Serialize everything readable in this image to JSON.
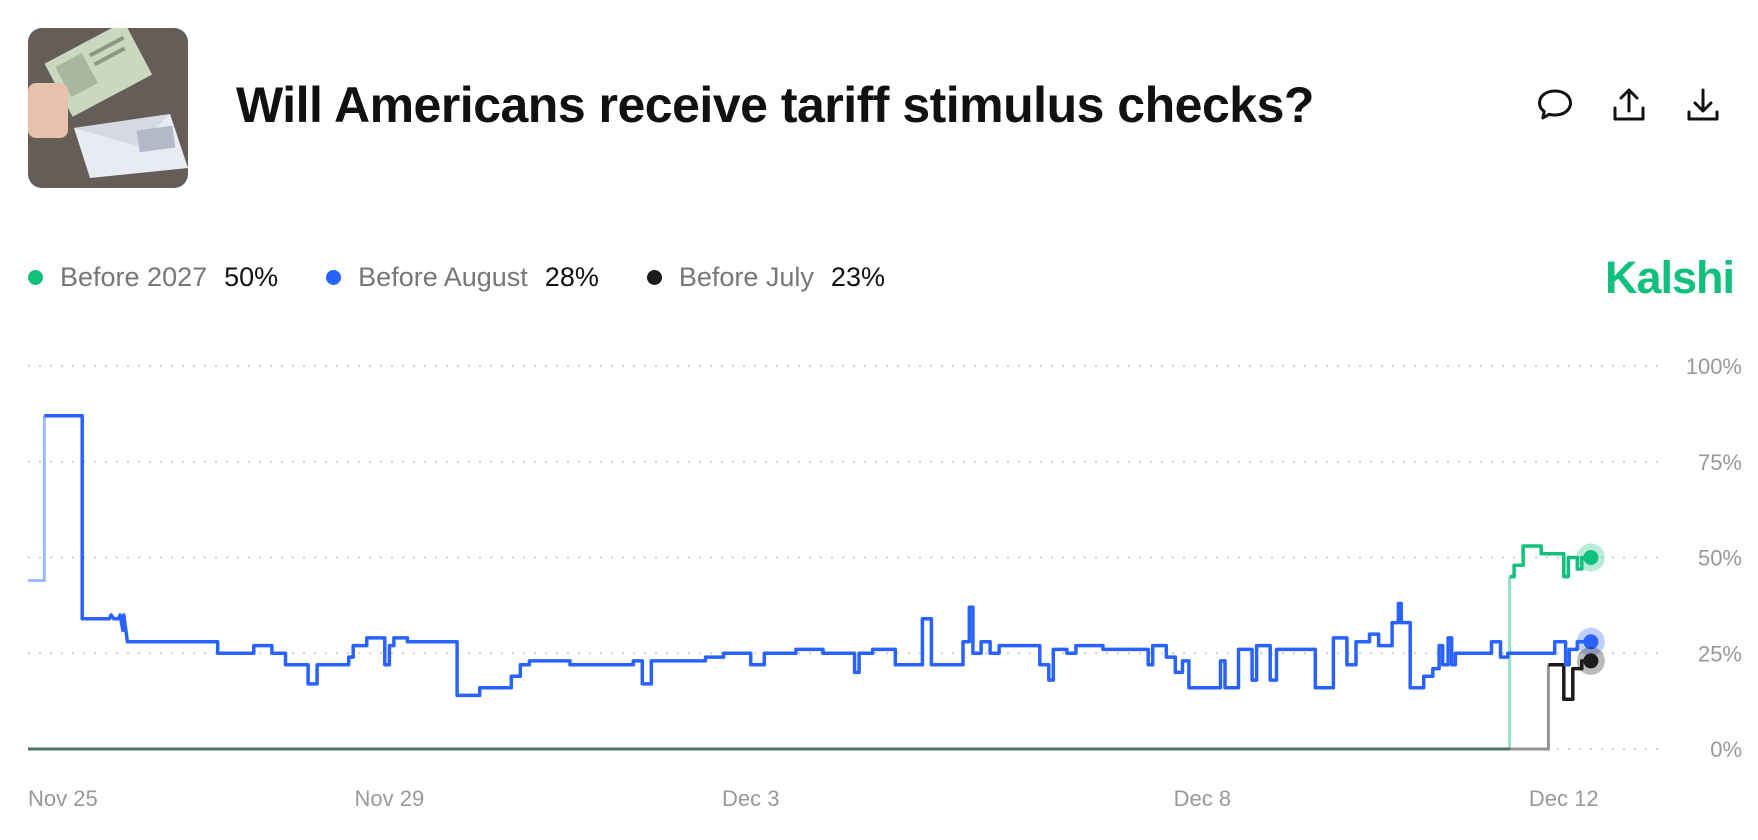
{
  "header": {
    "title": "Will Americans receive tariff stimulus checks?",
    "thumbnail_icon": "stimulus-check-envelope-photo",
    "actions": [
      {
        "name": "comment-icon"
      },
      {
        "name": "share-icon"
      },
      {
        "name": "download-icon"
      }
    ]
  },
  "brand": {
    "label": "Kalshi",
    "color": "#12c07e"
  },
  "legend": [
    {
      "name": "Before 2027",
      "value": "50%",
      "color": "#12c07e"
    },
    {
      "name": "Before August",
      "value": "28%",
      "color": "#2962ff"
    },
    {
      "name": "Before July",
      "value": "23%",
      "color": "#1b1b1b"
    }
  ],
  "chart_data": {
    "type": "line",
    "title": "",
    "xlabel": "",
    "ylabel": "",
    "ylim": [
      0,
      100
    ],
    "y_ticks": [
      "0%",
      "25%",
      "50%",
      "75%",
      "100%"
    ],
    "x_ticks": [
      {
        "label": "Nov 25",
        "day": 0
      },
      {
        "label": "Nov 29",
        "day": 4
      },
      {
        "label": "Dec 3",
        "day": 8
      },
      {
        "label": "Dec 8",
        "day": 13
      },
      {
        "label": "Dec 12",
        "day": 17
      }
    ],
    "grid": true,
    "legend_position": "top-left",
    "series": [
      {
        "name": "Before August",
        "color": "#2962ff",
        "points": [
          [
            0.0,
            44
          ],
          [
            0.18,
            44
          ],
          [
            0.18,
            87
          ],
          [
            0.6,
            87
          ],
          [
            0.6,
            34
          ],
          [
            0.9,
            34
          ],
          [
            0.92,
            35
          ],
          [
            0.95,
            34
          ],
          [
            1.0,
            34
          ],
          [
            1.02,
            35
          ],
          [
            1.05,
            31
          ],
          [
            1.06,
            35
          ],
          [
            1.1,
            28
          ],
          [
            2.1,
            28
          ],
          [
            2.1,
            25
          ],
          [
            2.5,
            25
          ],
          [
            2.5,
            27
          ],
          [
            2.7,
            27
          ],
          [
            2.7,
            25
          ],
          [
            2.85,
            25
          ],
          [
            2.85,
            22
          ],
          [
            3.1,
            22
          ],
          [
            3.1,
            22
          ],
          [
            3.1,
            17
          ],
          [
            3.2,
            17
          ],
          [
            3.2,
            22
          ],
          [
            3.55,
            22
          ],
          [
            3.55,
            24
          ],
          [
            3.6,
            24
          ],
          [
            3.6,
            27
          ],
          [
            3.75,
            27
          ],
          [
            3.75,
            29
          ],
          [
            3.95,
            29
          ],
          [
            3.95,
            22
          ],
          [
            4.0,
            22
          ],
          [
            4.0,
            27
          ],
          [
            4.05,
            27
          ],
          [
            4.05,
            29
          ],
          [
            4.2,
            29
          ],
          [
            4.2,
            28
          ],
          [
            4.75,
            28
          ],
          [
            4.75,
            14
          ],
          [
            5.0,
            14
          ],
          [
            5.0,
            16
          ],
          [
            5.35,
            16
          ],
          [
            5.35,
            19
          ],
          [
            5.45,
            19
          ],
          [
            5.45,
            22
          ],
          [
            5.55,
            22
          ],
          [
            5.55,
            23
          ],
          [
            6.0,
            23
          ],
          [
            6.0,
            22
          ],
          [
            6.7,
            22
          ],
          [
            6.7,
            23
          ],
          [
            6.8,
            23
          ],
          [
            6.8,
            17
          ],
          [
            6.9,
            17
          ],
          [
            6.9,
            23
          ],
          [
            7.5,
            23
          ],
          [
            7.5,
            24
          ],
          [
            7.7,
            24
          ],
          [
            7.7,
            25
          ],
          [
            8.0,
            25
          ],
          [
            8.0,
            22
          ],
          [
            8.15,
            22
          ],
          [
            8.15,
            25
          ],
          [
            8.5,
            25
          ],
          [
            8.5,
            26
          ],
          [
            8.8,
            26
          ],
          [
            8.8,
            25
          ],
          [
            9.15,
            25
          ],
          [
            9.15,
            20
          ],
          [
            9.2,
            20
          ],
          [
            9.2,
            25
          ],
          [
            9.35,
            25
          ],
          [
            9.35,
            26
          ],
          [
            9.6,
            26
          ],
          [
            9.6,
            22
          ],
          [
            9.9,
            22
          ],
          [
            9.9,
            34
          ],
          [
            10.0,
            34
          ],
          [
            10.0,
            22
          ],
          [
            10.35,
            22
          ],
          [
            10.35,
            28
          ],
          [
            10.42,
            28
          ],
          [
            10.42,
            37
          ],
          [
            10.46,
            37
          ],
          [
            10.46,
            25
          ],
          [
            10.55,
            25
          ],
          [
            10.55,
            28
          ],
          [
            10.65,
            28
          ],
          [
            10.65,
            25
          ],
          [
            10.75,
            25
          ],
          [
            10.75,
            27
          ],
          [
            11.2,
            27
          ],
          [
            11.2,
            22
          ],
          [
            11.3,
            22
          ],
          [
            11.3,
            18
          ],
          [
            11.35,
            18
          ],
          [
            11.35,
            26
          ],
          [
            11.5,
            26
          ],
          [
            11.5,
            25
          ],
          [
            11.6,
            25
          ],
          [
            11.6,
            27
          ],
          [
            11.9,
            27
          ],
          [
            11.9,
            26
          ],
          [
            12.4,
            26
          ],
          [
            12.4,
            22
          ],
          [
            12.45,
            22
          ],
          [
            12.45,
            27
          ],
          [
            12.6,
            27
          ],
          [
            12.6,
            24
          ],
          [
            12.7,
            24
          ],
          [
            12.7,
            20
          ],
          [
            12.78,
            20
          ],
          [
            12.78,
            23
          ],
          [
            12.85,
            23
          ],
          [
            12.85,
            16
          ],
          [
            13.2,
            16
          ],
          [
            13.2,
            23
          ],
          [
            13.25,
            23
          ],
          [
            13.25,
            16
          ],
          [
            13.4,
            16
          ],
          [
            13.4,
            26
          ],
          [
            13.55,
            26
          ],
          [
            13.55,
            18
          ],
          [
            13.6,
            18
          ],
          [
            13.6,
            27
          ],
          [
            13.75,
            27
          ],
          [
            13.75,
            18
          ],
          [
            13.82,
            18
          ],
          [
            13.82,
            26
          ],
          [
            14.25,
            26
          ],
          [
            14.25,
            16
          ],
          [
            14.45,
            16
          ],
          [
            14.45,
            29
          ],
          [
            14.6,
            29
          ],
          [
            14.6,
            22
          ],
          [
            14.7,
            22
          ],
          [
            14.7,
            28
          ],
          [
            14.85,
            28
          ],
          [
            14.85,
            30
          ],
          [
            14.95,
            30
          ],
          [
            14.95,
            27
          ],
          [
            15.1,
            27
          ],
          [
            15.1,
            33
          ],
          [
            15.17,
            33
          ],
          [
            15.17,
            38
          ],
          [
            15.2,
            38
          ],
          [
            15.2,
            33
          ],
          [
            15.3,
            33
          ],
          [
            15.3,
            16
          ],
          [
            15.45,
            16
          ],
          [
            15.45,
            19
          ],
          [
            15.55,
            19
          ],
          [
            15.55,
            21
          ],
          [
            15.62,
            21
          ],
          [
            15.62,
            27
          ],
          [
            15.66,
            27
          ],
          [
            15.66,
            22
          ],
          [
            15.72,
            22
          ],
          [
            15.72,
            29
          ],
          [
            15.76,
            29
          ],
          [
            15.76,
            22
          ],
          [
            15.8,
            22
          ],
          [
            15.8,
            25
          ],
          [
            16.2,
            25
          ],
          [
            16.2,
            28
          ],
          [
            16.3,
            28
          ],
          [
            16.3,
            24
          ],
          [
            16.38,
            24
          ],
          [
            16.38,
            25
          ],
          [
            16.9,
            25
          ],
          [
            16.9,
            28
          ],
          [
            17.02,
            28
          ],
          [
            17.02,
            22
          ],
          [
            17.06,
            22
          ],
          [
            17.06,
            26
          ],
          [
            17.15,
            26
          ],
          [
            17.15,
            28
          ],
          [
            17.3,
            28
          ]
        ]
      },
      {
        "name": "Before 2027",
        "color": "#12c07e",
        "points": [
          [
            0.0,
            0
          ],
          [
            16.4,
            0
          ],
          [
            16.4,
            45
          ],
          [
            16.45,
            45
          ],
          [
            16.45,
            48
          ],
          [
            16.55,
            48
          ],
          [
            16.55,
            53
          ],
          [
            16.75,
            53
          ],
          [
            16.75,
            51
          ],
          [
            17.0,
            51
          ],
          [
            17.0,
            45
          ],
          [
            17.05,
            45
          ],
          [
            17.05,
            50
          ],
          [
            17.15,
            50
          ],
          [
            17.15,
            47
          ],
          [
            17.2,
            47
          ],
          [
            17.2,
            50
          ],
          [
            17.3,
            50
          ]
        ]
      },
      {
        "name": "Before July",
        "color": "#1b1b1b",
        "points": [
          [
            0.0,
            0
          ],
          [
            16.83,
            0
          ],
          [
            16.83,
            22
          ],
          [
            17.0,
            22
          ],
          [
            17.0,
            13
          ],
          [
            17.1,
            13
          ],
          [
            17.1,
            21
          ],
          [
            17.2,
            21
          ],
          [
            17.2,
            23
          ],
          [
            17.3,
            23
          ]
        ]
      }
    ]
  }
}
